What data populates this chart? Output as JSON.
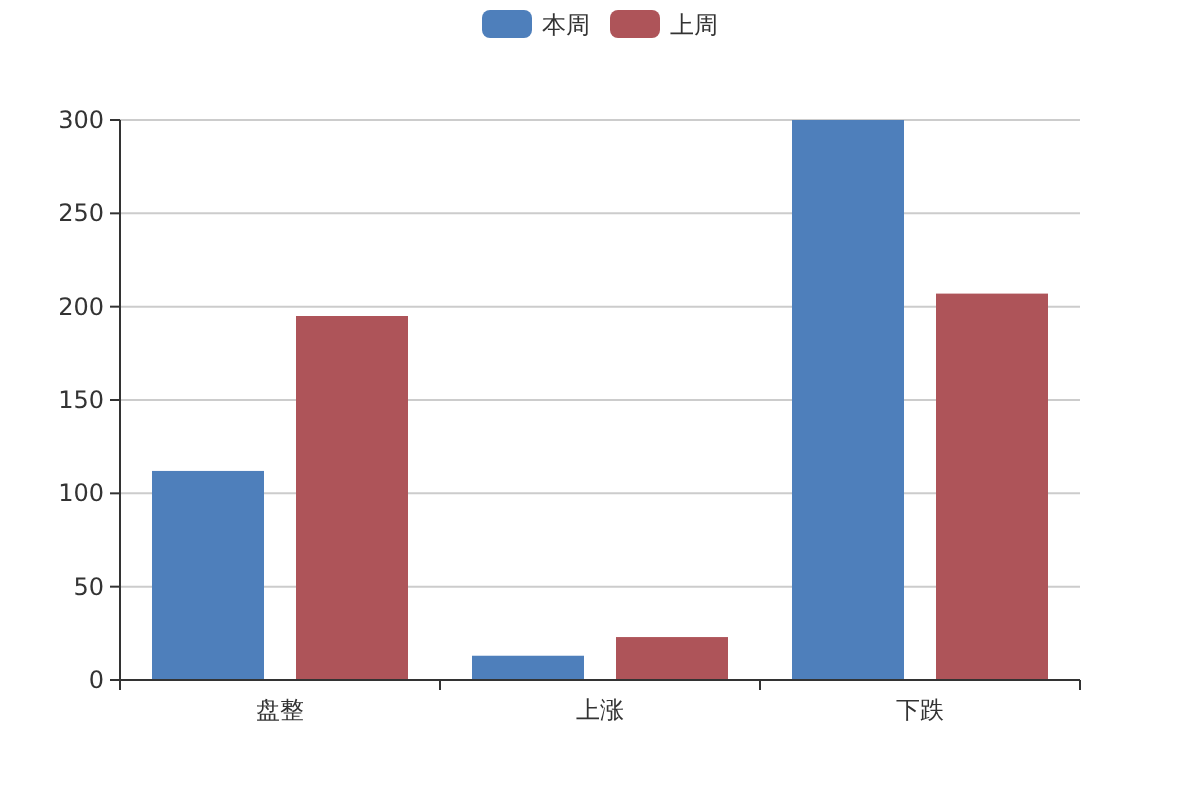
{
  "chart_data": {
    "type": "bar",
    "categories": [
      "盘整",
      "上涨",
      "下跌"
    ],
    "series": [
      {
        "name": "本周",
        "color": "#4e7fbb",
        "values": [
          112,
          13,
          300
        ]
      },
      {
        "name": "上周",
        "color": "#ae5459",
        "values": [
          195,
          23,
          207
        ]
      }
    ],
    "ylim": [
      0,
      300
    ],
    "yticks": [
      0,
      50,
      100,
      150,
      200,
      250,
      300
    ],
    "grid": "y",
    "legend": "top"
  }
}
